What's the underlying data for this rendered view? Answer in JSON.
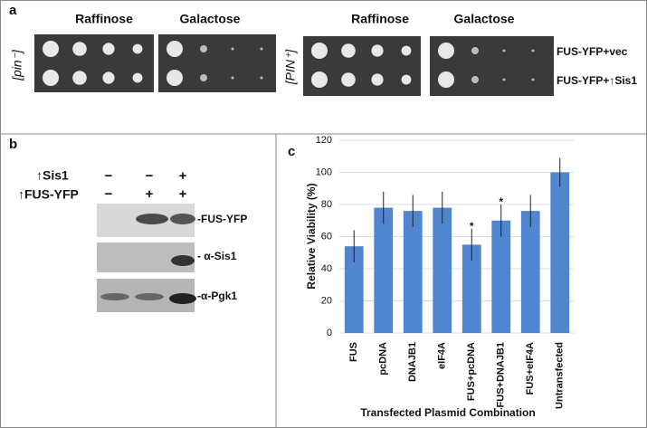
{
  "panel_a": {
    "label": "a",
    "left_strain": "[pin⁻]",
    "right_strain": "[PIN⁺]",
    "left_media": [
      "Raffinose",
      "Galactose"
    ],
    "right_media": [
      "Raffinose",
      "Galactose"
    ],
    "rows": [
      "FUS-YFP+vec",
      "FUS-YFP+↑Sis1"
    ]
  },
  "panel_b": {
    "label": "b",
    "conditions": [
      "↑Sis1",
      "↑FUS-YFP"
    ],
    "signs": [
      [
        "−",
        "−",
        "+"
      ],
      [
        "−",
        "+",
        "+"
      ]
    ],
    "blots": [
      "-FUS-YFP",
      "- α-Sis1",
      "-α-Pgk1"
    ]
  },
  "chart_data": {
    "type": "bar",
    "panel_label": "c",
    "y_label": "Relative Viability (%)",
    "x_label": "Transfected Plasmid Combination",
    "categories": [
      "FUS",
      "pcDNA",
      "DNAJB1",
      "eIF4A",
      "FUS+pcDNA",
      "FUS+DNAJB1",
      "FUS+eIF4A",
      "Untransfected"
    ],
    "values": [
      54,
      78,
      76,
      78,
      55,
      70,
      76,
      100
    ],
    "errors": [
      10,
      10,
      10,
      10,
      10,
      10,
      10,
      9
    ],
    "markers": [
      null,
      null,
      null,
      null,
      "*",
      "*",
      null,
      null
    ],
    "color": "#4f86cf",
    "ylim": [
      0,
      120
    ],
    "yticks": [
      0,
      20,
      40,
      60,
      80,
      100,
      120
    ],
    "grid": true
  }
}
